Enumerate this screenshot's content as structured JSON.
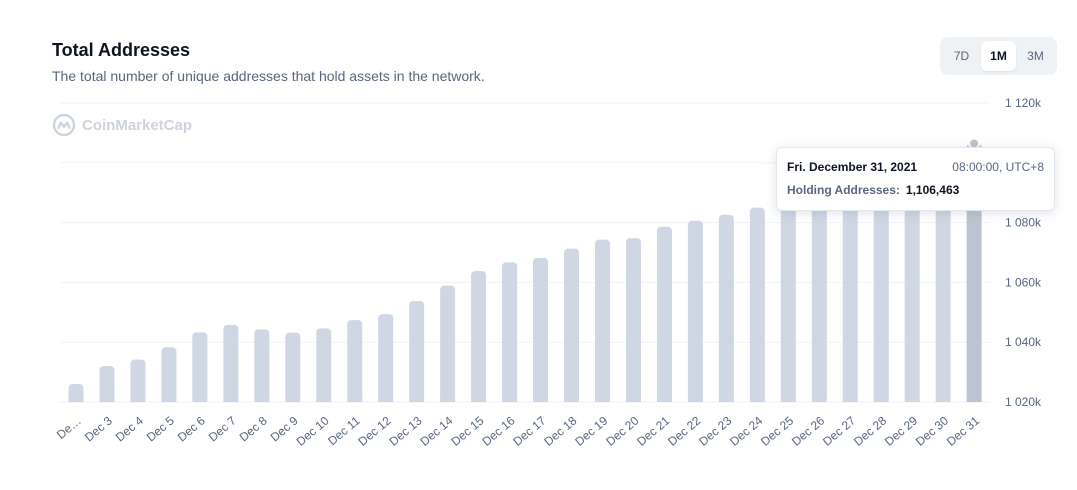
{
  "header": {
    "title": "Total Addresses",
    "subtitle": "The total number of unique addresses that hold assets in the network."
  },
  "range": {
    "options": [
      "7D",
      "1M",
      "3M"
    ],
    "selected": "1M"
  },
  "watermark": {
    "text": "CoinMarketCap"
  },
  "tooltip": {
    "date": "Fri. December 31, 2021",
    "time": "08:00:00, UTC+8",
    "label": "Holding Addresses:",
    "value": "1,106,463"
  },
  "colors": {
    "bar": "#cfd6e4",
    "bar_active": "#bcc4d1",
    "grid": "#eff2f5",
    "axis_text": "#58667e"
  },
  "chart_data": {
    "type": "bar",
    "title": "Total Addresses",
    "ylabel": "",
    "xlabel": "",
    "ylim": [
      1020000,
      1120000
    ],
    "grid": true,
    "yticks": [
      1020000,
      1040000,
      1060000,
      1080000,
      1100000,
      1120000
    ],
    "ytick_labels": [
      "1 020k",
      "1 040k",
      "1 060k",
      "1 080k",
      "1 100k",
      "1 120k"
    ],
    "categories": [
      "De…",
      "Dec 3",
      "Dec 4",
      "Dec 5",
      "Dec 6",
      "Dec 7",
      "Dec 8",
      "Dec 9",
      "Dec 10",
      "Dec 11",
      "Dec 12",
      "Dec 13",
      "Dec 14",
      "Dec 15",
      "Dec 16",
      "Dec 17",
      "Dec 18",
      "Dec 19",
      "Dec 20",
      "Dec 21",
      "Dec 22",
      "Dec 23",
      "Dec 24",
      "Dec 25",
      "Dec 26",
      "Dec 27",
      "Dec 28",
      "Dec 29",
      "Dec 30",
      "Dec 31"
    ],
    "values": [
      1026000,
      1032000,
      1034200,
      1038300,
      1043300,
      1045800,
      1044300,
      1043200,
      1044600,
      1047400,
      1049400,
      1053800,
      1058900,
      1063800,
      1066700,
      1068200,
      1071300,
      1074300,
      1074800,
      1078600,
      1080600,
      1082600,
      1085000,
      1087500,
      1089700,
      1092200,
      1095500,
      1099000,
      1102800,
      1106463
    ],
    "highlight_index": 29
  }
}
